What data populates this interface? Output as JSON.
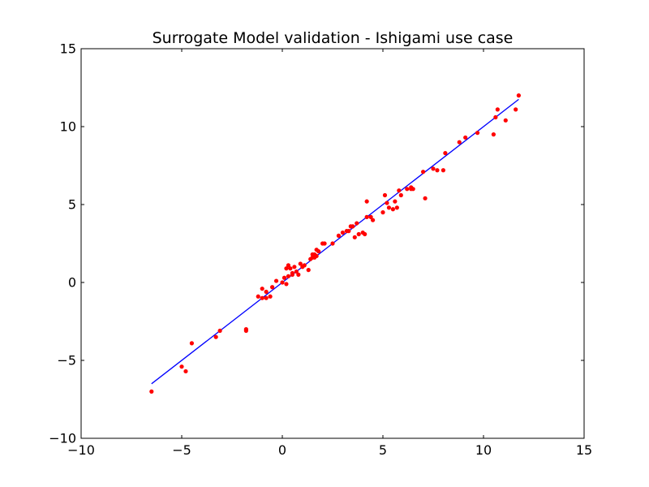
{
  "chart_data": {
    "type": "scatter",
    "title": "Surrogate Model validation - Ishigami use case",
    "xlabel": "",
    "ylabel": "",
    "xlim": [
      -10,
      15
    ],
    "ylim": [
      -10,
      15
    ],
    "xticks": [
      -10,
      -5,
      0,
      5,
      10,
      15
    ],
    "yticks": [
      -10,
      -5,
      0,
      5,
      10,
      15
    ],
    "xtick_labels": [
      "−10",
      "−5",
      "0",
      "5",
      "10",
      "15"
    ],
    "ytick_labels": [
      "−10",
      "−5",
      "0",
      "5",
      "10",
      "15"
    ],
    "grid": false,
    "legend": "none",
    "series": [
      {
        "kind": "line",
        "color": "#0000ff",
        "x": [
          -6.5,
          11.75
        ],
        "y": [
          -6.5,
          11.75
        ]
      },
      {
        "kind": "scatter",
        "color": "#ff0000",
        "x": [
          -6.5,
          -5.0,
          -4.8,
          -4.5,
          -3.3,
          -3.1,
          -1.8,
          -1.8,
          -1.2,
          -1.0,
          -1.0,
          -0.8,
          -0.8,
          -0.6,
          -0.5,
          -0.3,
          0.0,
          0.1,
          0.2,
          0.2,
          0.3,
          0.3,
          0.4,
          0.5,
          0.5,
          0.6,
          0.7,
          0.8,
          0.9,
          1.0,
          1.1,
          1.3,
          1.4,
          1.5,
          1.5,
          1.6,
          1.6,
          1.7,
          1.7,
          1.8,
          2.0,
          2.1,
          2.5,
          2.8,
          3.0,
          3.2,
          3.3,
          3.4,
          3.5,
          3.6,
          3.7,
          3.8,
          4.0,
          4.1,
          4.2,
          4.2,
          4.4,
          4.5,
          5.0,
          5.1,
          5.2,
          5.3,
          5.5,
          5.6,
          5.7,
          5.8,
          5.9,
          6.2,
          6.4,
          6.4,
          6.5,
          7.0,
          7.1,
          7.5,
          7.7,
          8.0,
          8.1,
          8.8,
          9.1,
          9.7,
          10.5,
          10.6,
          10.7,
          11.1,
          11.6,
          11.75
        ],
        "y": [
          -7.0,
          -5.4,
          -5.7,
          -3.9,
          -3.5,
          -3.1,
          -3.1,
          -3.0,
          -0.9,
          -1.0,
          -0.4,
          -1.0,
          -0.6,
          -0.9,
          -0.3,
          0.1,
          0.0,
          0.3,
          0.9,
          -0.1,
          1.1,
          0.4,
          0.9,
          0.6,
          0.5,
          1.0,
          0.7,
          0.5,
          1.2,
          1.0,
          1.1,
          0.8,
          1.5,
          1.8,
          1.6,
          1.6,
          1.8,
          1.7,
          2.1,
          2.0,
          2.5,
          2.5,
          2.5,
          3.0,
          3.2,
          3.3,
          3.3,
          3.6,
          3.6,
          2.9,
          3.8,
          3.1,
          3.2,
          3.1,
          5.2,
          4.2,
          4.2,
          4.0,
          4.5,
          5.6,
          5.1,
          4.8,
          4.7,
          5.2,
          4.8,
          5.9,
          5.6,
          6.0,
          6.0,
          6.1,
          6.0,
          7.1,
          5.4,
          7.3,
          7.2,
          7.2,
          8.3,
          9.0,
          9.3,
          9.6,
          9.5,
          10.6,
          11.1,
          10.4,
          11.1,
          12.0
        ]
      }
    ]
  }
}
